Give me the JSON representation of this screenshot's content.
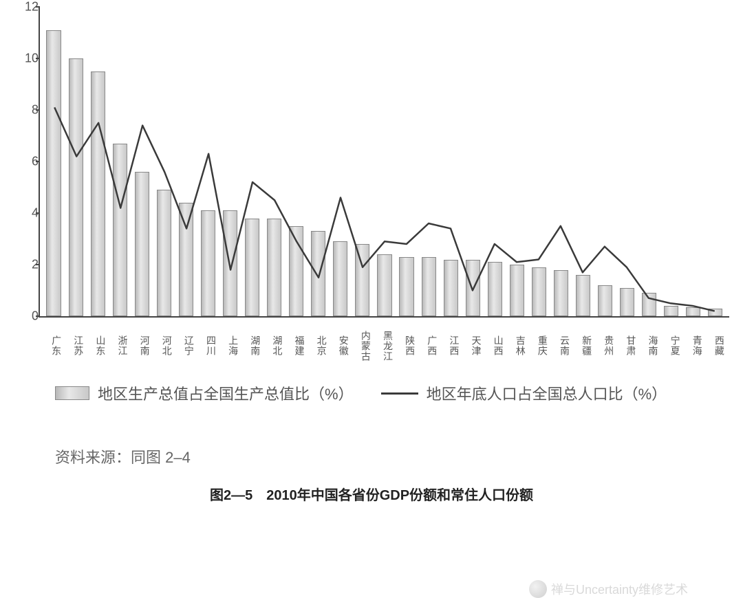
{
  "chart": {
    "type": "bar+line",
    "ylim": [
      0,
      12
    ],
    "yticks": [
      0,
      2,
      4,
      6,
      8,
      10,
      12
    ],
    "ytick_fontsize": 18,
    "xlabel_fontsize": 14,
    "axis_color": "#444444",
    "background_color": "#ffffff",
    "bar_gradient_from": "#b8b8b8",
    "bar_gradient_mid": "#e8e8e8",
    "bar_gradient_to": "#c8c8c8",
    "bar_border_color": "#888888",
    "bar_width_ratio": 0.66,
    "line_color": "#3a3a3a",
    "line_width": 2.5,
    "categories": [
      "广东",
      "江苏",
      "山东",
      "浙江",
      "河南",
      "河北",
      "辽宁",
      "四川",
      "上海",
      "湖南",
      "湖北",
      "福建",
      "北京",
      "安徽",
      "内蒙古",
      "黑龙江",
      "陕西",
      "广西",
      "江西",
      "天津",
      "山西",
      "吉林",
      "重庆",
      "云南",
      "新疆",
      "贵州",
      "甘肃",
      "海南",
      "宁夏",
      "青海",
      "西藏"
    ],
    "bar_values": [
      11.1,
      10.0,
      9.5,
      6.7,
      5.6,
      4.9,
      4.4,
      4.1,
      4.1,
      3.8,
      3.8,
      3.5,
      3.3,
      2.9,
      2.8,
      2.4,
      2.3,
      2.3,
      2.2,
      2.2,
      2.1,
      2.0,
      1.9,
      1.8,
      1.6,
      1.2,
      1.1,
      0.9,
      0.4,
      0.35,
      0.3
    ],
    "line_values": [
      8.1,
      6.2,
      7.5,
      4.2,
      7.4,
      5.6,
      3.4,
      6.3,
      1.8,
      5.2,
      4.5,
      2.9,
      1.5,
      4.6,
      1.9,
      2.9,
      2.8,
      3.6,
      3.4,
      1.0,
      2.8,
      2.1,
      2.2,
      3.5,
      1.7,
      2.7,
      1.9,
      0.7,
      0.5,
      0.4,
      0.2
    ]
  },
  "legend": {
    "bar_label": "地区生产总值占全国生产总值比（%）",
    "line_label": "地区年底人口占全国总人口比（%）",
    "fontsize": 22
  },
  "source": {
    "label": "资料来源：同图 2–4",
    "fontsize": 22
  },
  "caption": {
    "label": "图2—5　2010年中国各省份GDP份额和常住人口份额",
    "fontsize": 20
  },
  "watermark": {
    "text": "禅与Uncertainty维修艺术"
  }
}
